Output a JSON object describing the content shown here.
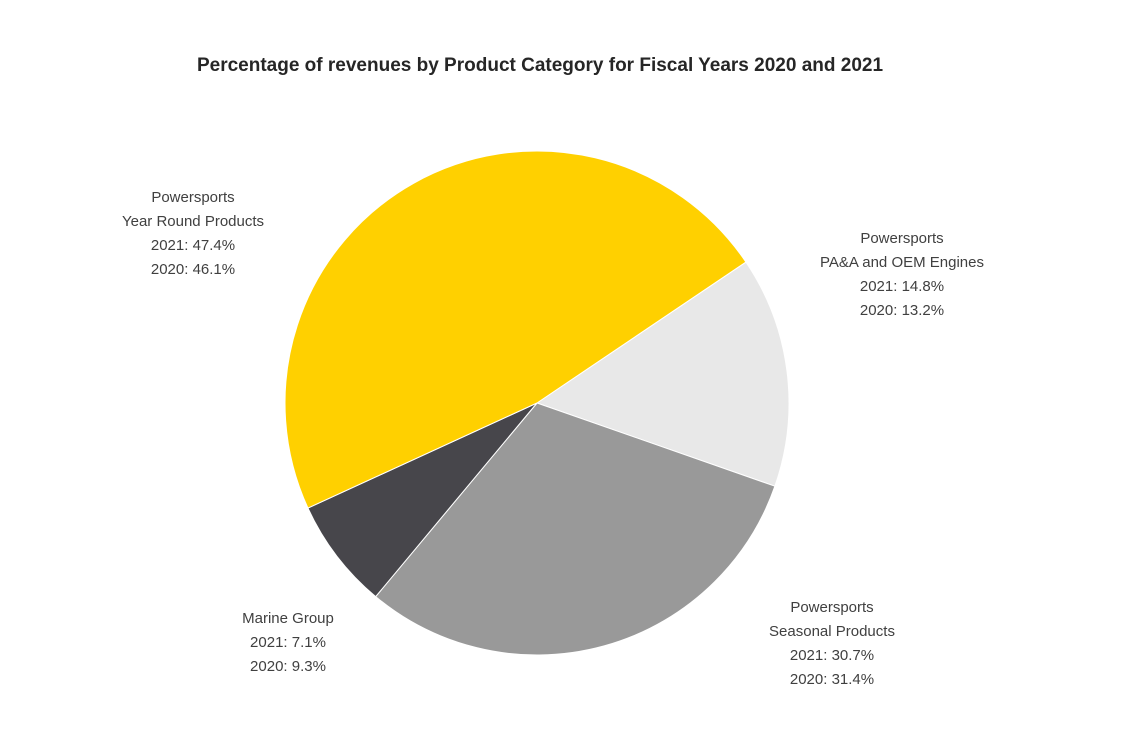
{
  "chart_data": {
    "type": "pie",
    "title": "Percentage of revenues by Product Category for Fiscal Years 2020 and 2021",
    "series_shown": "2021",
    "slices": [
      {
        "name": "Powersports PA&A and OEM Engines",
        "label_lines": [
          "Powersports",
          "PA&A and OEM Engines",
          "2021: 14.8%",
          "2020: 13.2%"
        ],
        "value_2021": 14.8,
        "value_2020": 13.2,
        "color": "#E8E8E8"
      },
      {
        "name": "Powersports Seasonal Products",
        "label_lines": [
          "Powersports",
          "Seasonal Products",
          "2021: 30.7%",
          "2020: 31.4%"
        ],
        "value_2021": 30.7,
        "value_2020": 31.4,
        "color": "#999999"
      },
      {
        "name": "Marine Group",
        "label_lines": [
          "Marine Group",
          "2021: 7.1%",
          "2020: 9.3%"
        ],
        "value_2021": 7.1,
        "value_2020": 9.3,
        "color": "#47464B"
      },
      {
        "name": "Powersports Year Round Products",
        "label_lines": [
          "Powersports",
          "Year Round Products",
          "2021: 47.4%",
          "2020: 46.1%"
        ],
        "value_2021": 47.4,
        "value_2020": 46.1,
        "color": "#FFD000"
      }
    ]
  }
}
